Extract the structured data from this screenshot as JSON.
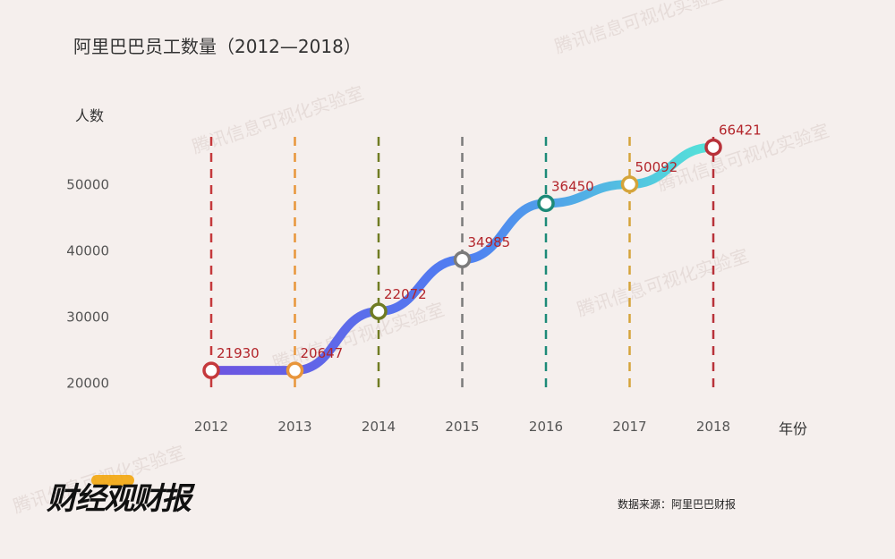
{
  "title": "阿里巴巴员工数量（2012—2018）",
  "source": "数据来源：阿里巴巴财报",
  "logo": "财经观财报",
  "watermark": "腾讯信息可视化实验室",
  "chart_data": {
    "type": "line",
    "x": [
      "2012",
      "2013",
      "2014",
      "2015",
      "2016",
      "2017",
      "2018"
    ],
    "ylabel": "人数",
    "xlabel": "年份",
    "ylim": [
      16000,
      62000
    ],
    "yticks": [
      20000,
      30000,
      40000,
      50000
    ],
    "values": [
      21930,
      20647,
      22072,
      34985,
      36450,
      50092,
      66421
    ],
    "point_positions": [
      21930,
      21930,
      30870,
      38700,
      47200,
      50092,
      55700
    ],
    "marker_colors": [
      "#c5393c",
      "#e8953a",
      "#707c23",
      "#7b7b7b",
      "#1d8a78",
      "#d5a43a",
      "#b8323a"
    ],
    "line_gradient": [
      "#6d54e0",
      "#4f7ef2",
      "#54e4d8"
    ],
    "grid": true
  }
}
